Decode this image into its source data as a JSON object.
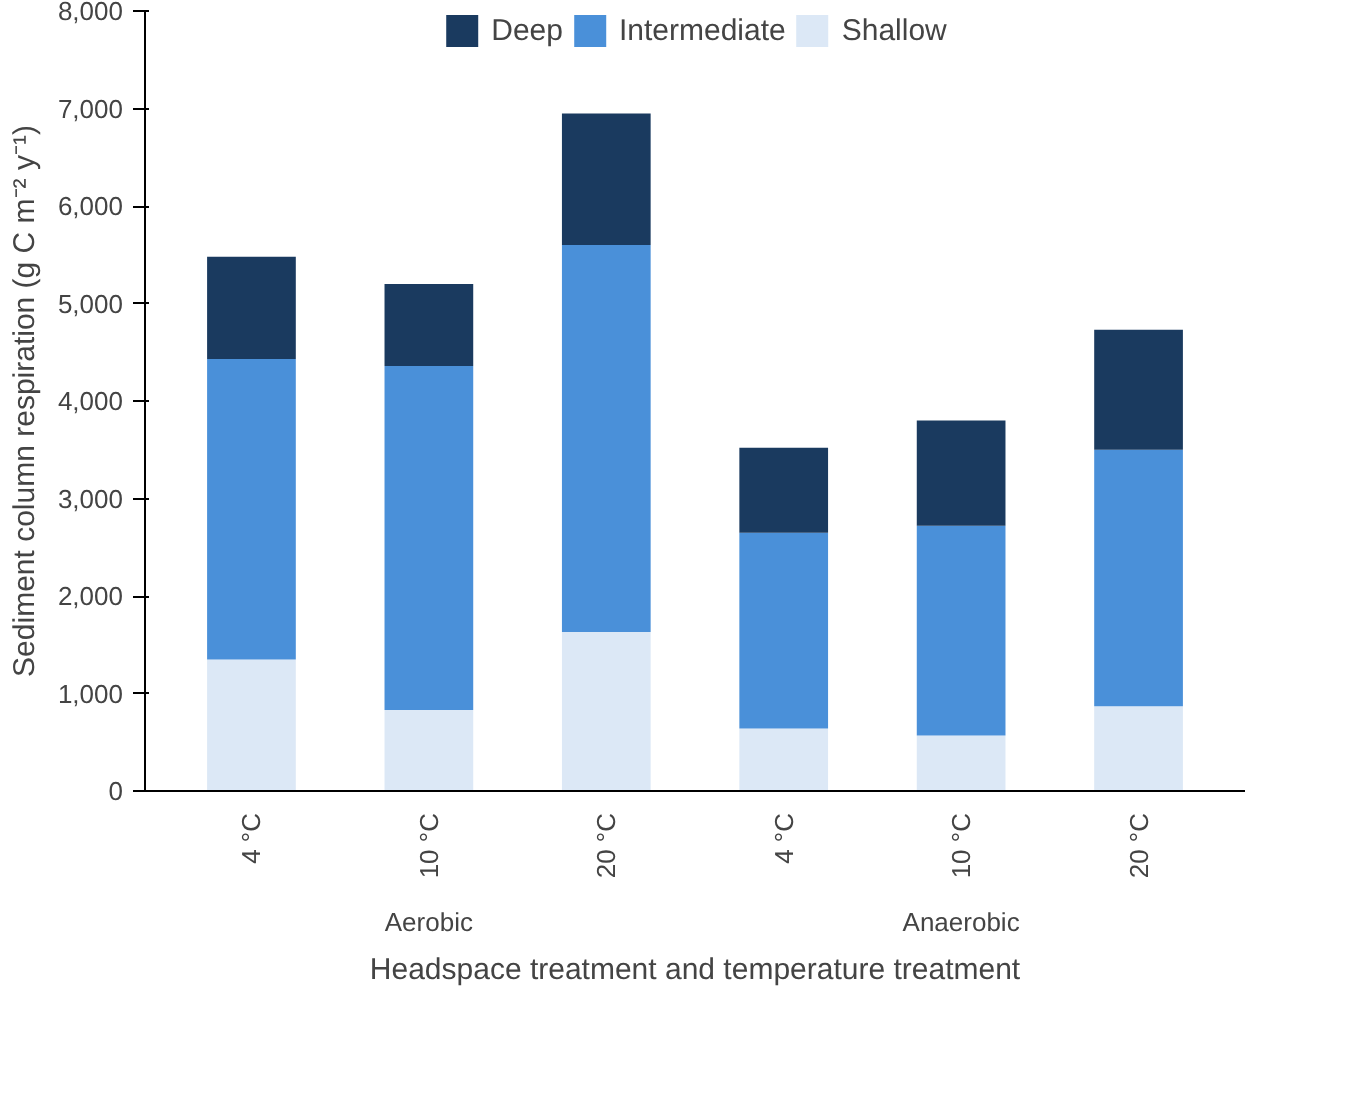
{
  "chart_data": {
    "type": "bar",
    "stacked": true,
    "ylabel": "Sediment column respiration (g C m⁻² y⁻¹)",
    "xlabel": "Headspace treatment and temperature treatment",
    "categories": [
      "4 °C",
      "10 °C",
      "20 °C",
      "4 °C",
      "10 °C",
      "20 °C"
    ],
    "series": [
      {
        "name": "Shallow",
        "color": "#dce8f6",
        "values": [
          1350,
          830,
          1630,
          640,
          570,
          870
        ]
      },
      {
        "name": "Intermediate",
        "color": "#4a90d9",
        "values": [
          3080,
          3530,
          3970,
          2010,
          2150,
          2630
        ]
      },
      {
        "name": "Deep",
        "color": "#1a3a5f",
        "values": [
          1050,
          840,
          1350,
          870,
          1080,
          1230
        ]
      }
    ],
    "annotations": [
      "Aerobic",
      "Anaerobic"
    ],
    "ylim": [
      0,
      8000
    ],
    "yticks": [
      {
        "value": 0,
        "label": "0"
      },
      {
        "value": 1000,
        "label": "1,000"
      },
      {
        "value": 2000,
        "label": "2,000"
      },
      {
        "value": 3000,
        "label": "3,000"
      },
      {
        "value": 4000,
        "label": "4,000"
      },
      {
        "value": 5000,
        "label": "5,000"
      },
      {
        "value": 6000,
        "label": "6,000"
      },
      {
        "value": 7000,
        "label": "7,000"
      },
      {
        "value": 8000,
        "label": "8,000"
      }
    ],
    "grid": false,
    "legend": "top"
  }
}
